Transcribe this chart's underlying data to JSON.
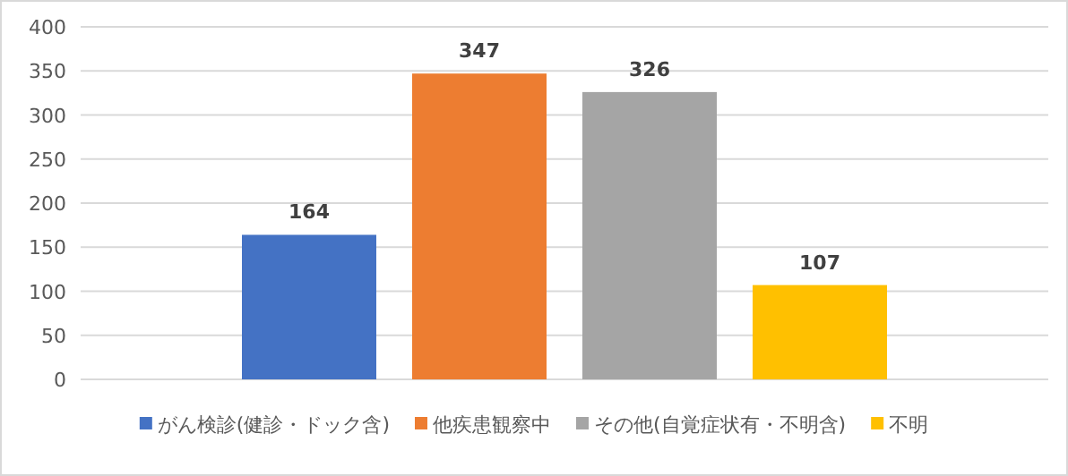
{
  "chart_data": {
    "type": "bar",
    "categories": [
      null,
      null,
      null,
      null
    ],
    "series": [
      {
        "name": "がん検診(健診・ドック含)",
        "color": "#4472c4",
        "values": [
          164,
          null,
          null,
          null
        ]
      },
      {
        "name": "他疾患観察中",
        "color": "#ed7d31",
        "values": [
          null,
          347,
          null,
          null
        ]
      },
      {
        "name": "その他(自覚症状有・不明含)",
        "color": "#a5a5a5",
        "values": [
          null,
          null,
          326,
          null
        ]
      },
      {
        "name": "不明",
        "color": "#ffc000",
        "values": [
          null,
          null,
          null,
          107
        ]
      }
    ],
    "ylim": [
      0,
      400
    ],
    "yticks": [
      0,
      50,
      100,
      150,
      200,
      250,
      300,
      350,
      400
    ],
    "grid": "y",
    "legend": "bottom",
    "data_labels": true
  }
}
